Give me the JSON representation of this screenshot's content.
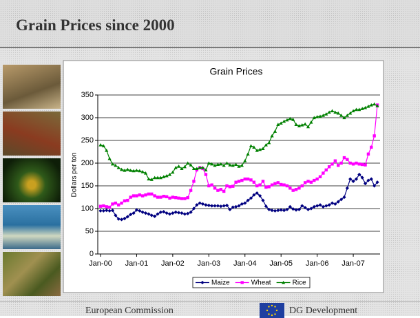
{
  "header": {
    "title": "Grain Prices since 2000"
  },
  "footer": {
    "left": "European Commission",
    "right": "DG Development"
  },
  "chart_data": {
    "type": "line",
    "title": "Grain Prices",
    "y_label": "Dollars per ton",
    "categories": [
      "Jan-00",
      null,
      null,
      null,
      null,
      null,
      null,
      null,
      null,
      null,
      null,
      null,
      "Jan-01",
      null,
      null,
      null,
      null,
      null,
      null,
      null,
      null,
      null,
      null,
      null,
      "Jan-02",
      null,
      null,
      null,
      null,
      null,
      null,
      null,
      null,
      null,
      null,
      null,
      "Jan-03",
      null,
      null,
      null,
      null,
      null,
      null,
      null,
      null,
      null,
      null,
      null,
      "Jan-04",
      null,
      null,
      null,
      null,
      null,
      null,
      null,
      null,
      null,
      null,
      null,
      "Jan-05",
      null,
      null,
      null,
      null,
      null,
      null,
      null,
      null,
      null,
      null,
      null,
      "Jan-06",
      null,
      null,
      null,
      null,
      null,
      null,
      null,
      null,
      null,
      null,
      null,
      "Jan-07",
      null,
      null,
      null,
      null,
      null,
      null,
      null,
      null
    ],
    "ylim": [
      0,
      350
    ],
    "yticks": [
      0,
      50,
      100,
      150,
      200,
      250,
      300,
      350
    ],
    "grid": true,
    "legend": "bottom",
    "series": [
      {
        "name": "Maize",
        "color": "#000080",
        "marker": "diamond",
        "values": [
          95,
          95,
          96,
          95,
          96,
          85,
          77,
          76,
          78,
          82,
          87,
          90,
          97,
          95,
          92,
          90,
          88,
          85,
          83,
          88,
          92,
          93,
          90,
          88,
          90,
          92,
          91,
          90,
          88,
          89,
          92,
          100,
          108,
          112,
          110,
          108,
          107,
          106,
          106,
          106,
          105,
          106,
          107,
          98,
          103,
          104,
          106,
          110,
          112,
          118,
          123,
          130,
          134,
          128,
          118,
          105,
          98,
          96,
          95,
          96,
          97,
          96,
          98,
          104,
          99,
          97,
          98,
          106,
          102,
          98,
          100,
          104,
          106,
          108,
          104,
          106,
          108,
          112,
          110,
          115,
          120,
          125,
          145,
          165,
          160,
          165,
          175,
          168,
          155,
          162,
          165,
          150,
          158
        ]
      },
      {
        "name": "Wheat",
        "color": "#ff00ff",
        "marker": "square",
        "values": [
          105,
          106,
          104,
          103,
          110,
          112,
          108,
          112,
          117,
          118,
          125,
          128,
          128,
          130,
          128,
          130,
          132,
          132,
          128,
          125,
          125,
          127,
          126,
          123,
          125,
          124,
          123,
          122,
          122,
          124,
          140,
          160,
          185,
          190,
          188,
          175,
          150,
          152,
          145,
          140,
          142,
          138,
          150,
          148,
          149,
          158,
          160,
          162,
          165,
          165,
          163,
          158,
          150,
          152,
          160,
          147,
          148,
          152,
          155,
          157,
          153,
          152,
          150,
          145,
          140,
          142,
          145,
          150,
          157,
          160,
          158,
          162,
          165,
          170,
          178,
          185,
          192,
          198,
          205,
          195,
          200,
          212,
          208,
          200,
          198,
          200,
          198,
          197,
          196,
          220,
          235,
          260,
          328
        ]
      },
      {
        "name": "Rice",
        "color": "#008000",
        "marker": "triangle",
        "values": [
          240,
          238,
          228,
          210,
          198,
          195,
          190,
          186,
          184,
          186,
          184,
          183,
          184,
          183,
          181,
          178,
          165,
          164,
          168,
          168,
          168,
          170,
          172,
          175,
          180,
          190,
          193,
          188,
          192,
          200,
          196,
          188,
          188,
          190,
          190,
          185,
          200,
          198,
          195,
          197,
          198,
          195,
          200,
          196,
          195,
          197,
          193,
          195,
          205,
          220,
          238,
          235,
          228,
          230,
          232,
          240,
          245,
          260,
          270,
          285,
          288,
          292,
          295,
          298,
          296,
          285,
          282,
          284,
          286,
          280,
          290,
          300,
          302,
          303,
          305,
          308,
          312,
          315,
          312,
          310,
          305,
          300,
          305,
          310,
          315,
          318,
          318,
          320,
          322,
          325,
          328,
          330,
          326
        ]
      }
    ]
  }
}
